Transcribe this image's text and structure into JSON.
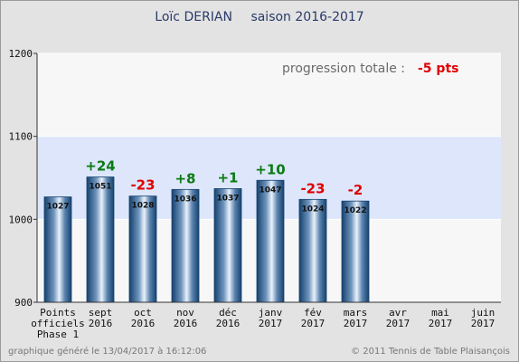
{
  "chart_data": {
    "type": "bar",
    "title_name": "Loïc DERIAN",
    "title_season": "saison 2016-2017",
    "categories": [
      [
        "Points",
        "officiels",
        "Phase 1"
      ],
      [
        "sept",
        "2016"
      ],
      [
        "oct",
        "2016"
      ],
      [
        "nov",
        "2016"
      ],
      [
        "déc",
        "2016"
      ],
      [
        "janv",
        "2017"
      ],
      [
        "fév",
        "2017"
      ],
      [
        "mars",
        "2017"
      ],
      [
        "avr",
        "2017"
      ],
      [
        "mai",
        "2017"
      ],
      [
        "juin",
        "2017"
      ]
    ],
    "values": [
      1027,
      1051,
      1028,
      1036,
      1037,
      1047,
      1024,
      1022,
      null,
      null,
      null
    ],
    "bar_labels": [
      "1027",
      "1051",
      "1028",
      "1036",
      "1037",
      "1047",
      "1024",
      "1022",
      "",
      "",
      ""
    ],
    "progressions": [
      null,
      "+24",
      "-23",
      "+8",
      "+1",
      "+10",
      "-23",
      "-2",
      null,
      null,
      null
    ],
    "ylim": [
      900,
      1200
    ],
    "yticks": [
      "900",
      "1000",
      "1100",
      "1200"
    ],
    "band": [
      1000,
      1100
    ],
    "grid": true,
    "total_progress_label": "progression totale :",
    "total_progress_value": "-5 pts"
  },
  "colors": {
    "background": "#e3e3e3",
    "plot_background": "#f7f7f7",
    "band": "#dde6fb",
    "bar_dark": "#15416e",
    "bar_light": "#eaf2fb",
    "positive": "#0a7a10",
    "negative": "#e00000"
  },
  "footer": {
    "generated": "graphique généré le 13/04/2017 à 16:12:06",
    "copyright": "© 2011 Tennis de Table Plaisançois"
  }
}
